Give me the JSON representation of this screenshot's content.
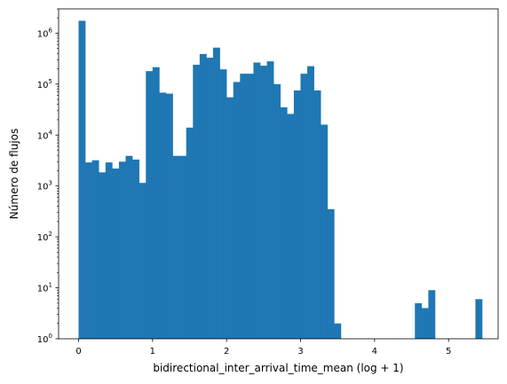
{
  "chart_data": {
    "type": "bar",
    "xlabel": "bidirectional_inter_arrival_time_mean (log + 1)",
    "ylabel": "Número de flujos",
    "xlim": [
      -0.27,
      5.67
    ],
    "ylim": [
      1,
      3000000
    ],
    "yscale": "log",
    "grid": false,
    "bar_color": "#1f77b4",
    "bin_width": 0.0909,
    "bin_start": 0,
    "x_ticks": [
      0,
      1,
      2,
      3,
      4,
      5
    ],
    "x_tick_labels": [
      "0",
      "1",
      "2",
      "3",
      "4",
      "5"
    ],
    "y_ticks": [
      1,
      10,
      100,
      1000,
      10000,
      100000,
      1000000
    ],
    "y_tick_labels": [
      "10",
      "10",
      "10",
      "10",
      "10",
      "10",
      "10"
    ],
    "y_tick_exponents": [
      "0",
      "1",
      "2",
      "3",
      "4",
      "5",
      "6"
    ],
    "values": [
      1750000,
      2900,
      3200,
      1850,
      2900,
      2200,
      3000,
      3900,
      3300,
      1150,
      180000,
      215000,
      68000,
      65000,
      3900,
      3900,
      14000,
      240000,
      390000,
      330000,
      520000,
      195000,
      55000,
      110000,
      160000,
      160000,
      265000,
      230000,
      280000,
      100000,
      35000,
      26000,
      75000,
      160000,
      225000,
      75000,
      16000,
      350,
      2,
      0,
      0,
      0,
      0,
      0,
      0,
      0,
      0,
      0,
      0,
      0,
      5,
      4,
      9,
      0,
      0,
      0,
      0,
      0,
      0,
      6
    ]
  }
}
